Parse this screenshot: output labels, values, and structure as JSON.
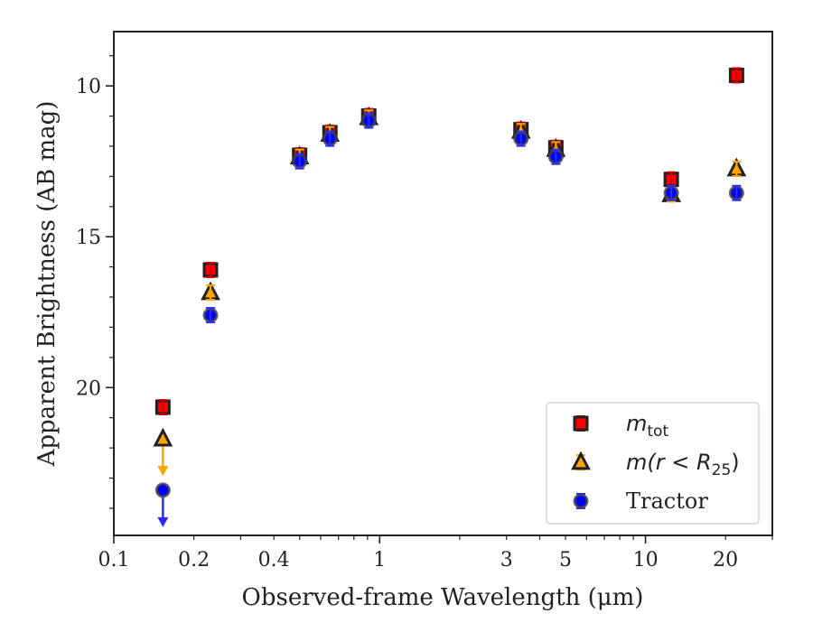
{
  "chart_data": {
    "type": "scatter",
    "xlabel": "Observed-frame Wavelength (μm)",
    "ylabel": "Apparent Brightness (AB mag)",
    "xscale": "log",
    "xlim": [
      0.1,
      30
    ],
    "ylim": [
      24.9,
      8.2
    ],
    "y_inverted": true,
    "x_ticks": [
      0.1,
      0.2,
      0.4,
      1,
      3,
      5,
      10,
      20
    ],
    "x_tick_labels": [
      "0.1",
      "0.2",
      "0.4",
      "1",
      "3",
      "5",
      "10",
      "20"
    ],
    "y_ticks": [
      10,
      15,
      20
    ],
    "y_tick_labels": [
      "10",
      "15",
      "20"
    ],
    "grid": false,
    "legend_position": "lower-right",
    "series": [
      {
        "key": "mtot",
        "legend_label_main": "m",
        "legend_label_sub": "tot",
        "marker": "square",
        "color": "#ff0000",
        "edge_color": "#222222",
        "errorbar_color": "#d00000",
        "points": [
          {
            "x": 0.153,
            "y": 20.65
          },
          {
            "x": 0.231,
            "y": 16.1
          },
          {
            "x": 0.5,
            "y": 12.3
          },
          {
            "x": 0.65,
            "y": 11.55
          },
          {
            "x": 0.91,
            "y": 11.0
          },
          {
            "x": 3.4,
            "y": 11.45
          },
          {
            "x": 4.6,
            "y": 12.05
          },
          {
            "x": 12.5,
            "y": 13.1
          },
          {
            "x": 22.0,
            "y": 9.65
          }
        ]
      },
      {
        "key": "mr25",
        "legend_label_main": "m(r < R",
        "legend_label_sub": "25",
        "legend_label_end": ")",
        "marker": "triangle",
        "color": "#ffa500",
        "edge_color": "#222222",
        "errorbar_color": "#ffa500",
        "points": [
          {
            "x": 0.153,
            "y": 21.7,
            "upper_limit": true
          },
          {
            "x": 0.231,
            "y": 16.85
          },
          {
            "x": 0.5,
            "y": 12.35
          },
          {
            "x": 0.65,
            "y": 11.6
          },
          {
            "x": 0.91,
            "y": 11.05
          },
          {
            "x": 3.4,
            "y": 11.5
          },
          {
            "x": 4.6,
            "y": 12.1
          },
          {
            "x": 12.5,
            "y": 13.6
          },
          {
            "x": 22.0,
            "y": 12.75
          }
        ]
      },
      {
        "key": "tractor",
        "legend_label": "Tractor",
        "marker": "circle",
        "color": "#0000ff",
        "edge_color": "#444444",
        "errorbar_color": "#2a2aff",
        "points": [
          {
            "x": 0.153,
            "y": 23.4,
            "upper_limit": true
          },
          {
            "x": 0.231,
            "y": 17.6
          },
          {
            "x": 0.5,
            "y": 12.5
          },
          {
            "x": 0.65,
            "y": 11.75
          },
          {
            "x": 0.91,
            "y": 11.15
          },
          {
            "x": 3.4,
            "y": 11.75
          },
          {
            "x": 4.6,
            "y": 12.35
          },
          {
            "x": 12.5,
            "y": 13.55
          },
          {
            "x": 22.0,
            "y": 13.55
          }
        ]
      }
    ]
  }
}
